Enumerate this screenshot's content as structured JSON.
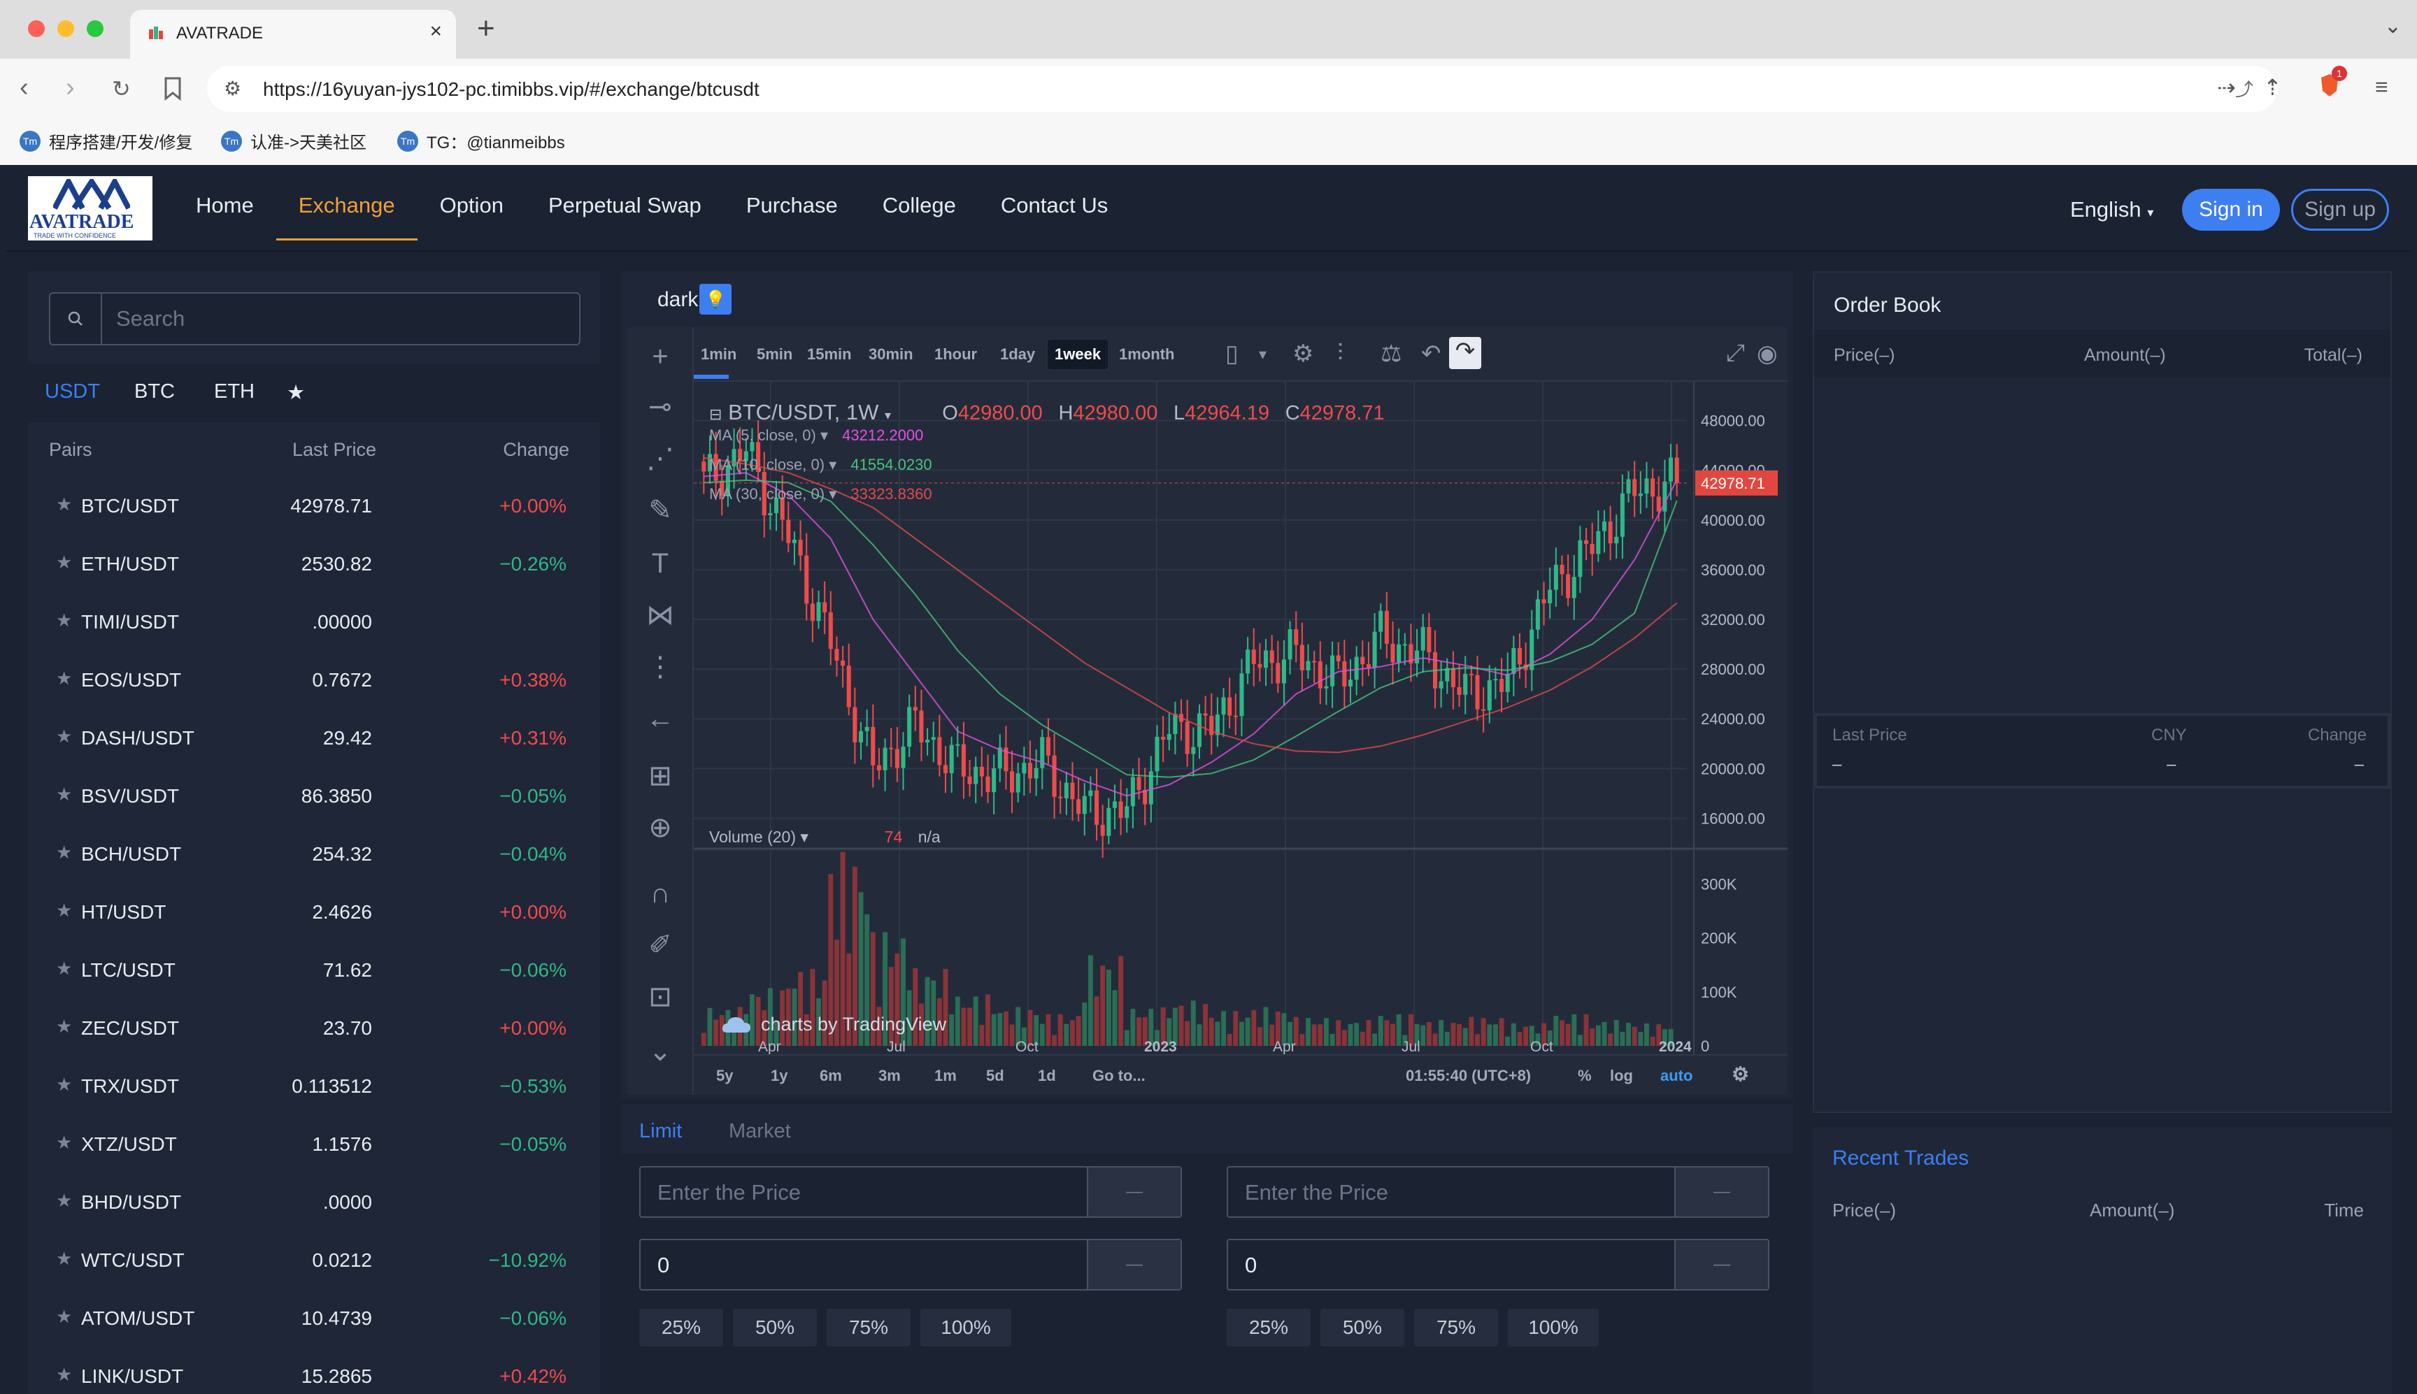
{
  "browser": {
    "tab_title": "AVATRADE",
    "url": "https://16yuyan-jys102-pc.timibbs.vip/#/exchange/btcusdt",
    "bookmarks": [
      "程序搭建/开发/修复",
      "认准->天美社区",
      "TG：@tianmeibbs"
    ],
    "extension_badge": "1"
  },
  "header": {
    "logo_text": "AVATRADE",
    "logo_sub": "TRADE WITH CONFIDENCE",
    "nav": [
      "Home",
      "Exchange",
      "Option",
      "Perpetual Swap",
      "Purchase",
      "College",
      "Contact Us"
    ],
    "active_nav": "Exchange",
    "language": "English",
    "signin": "Sign in",
    "signup": "Sign up"
  },
  "market": {
    "search_placeholder": "Search",
    "tabs": [
      "USDT",
      "BTC",
      "ETH",
      "★"
    ],
    "col_pairs": "Pairs",
    "col_price": "Last Price",
    "col_change": "Change",
    "pairs": [
      {
        "name": "BTC/USDT",
        "price": "42978.71",
        "change": "+0.00%",
        "dir": "up"
      },
      {
        "name": "ETH/USDT",
        "price": "2530.82",
        "change": "−0.26%",
        "dir": "down"
      },
      {
        "name": "TIMI/USDT",
        "price": ".00000",
        "change": "",
        "dir": "none"
      },
      {
        "name": "EOS/USDT",
        "price": "0.7672",
        "change": "+0.38%",
        "dir": "up"
      },
      {
        "name": "DASH/USDT",
        "price": "29.42",
        "change": "+0.31%",
        "dir": "up"
      },
      {
        "name": "BSV/USDT",
        "price": "86.3850",
        "change": "−0.05%",
        "dir": "down"
      },
      {
        "name": "BCH/USDT",
        "price": "254.32",
        "change": "−0.04%",
        "dir": "down"
      },
      {
        "name": "HT/USDT",
        "price": "2.4626",
        "change": "+0.00%",
        "dir": "up"
      },
      {
        "name": "LTC/USDT",
        "price": "71.62",
        "change": "−0.06%",
        "dir": "down"
      },
      {
        "name": "ZEC/USDT",
        "price": "23.70",
        "change": "+0.00%",
        "dir": "up"
      },
      {
        "name": "TRX/USDT",
        "price": "0.113512",
        "change": "−0.53%",
        "dir": "down"
      },
      {
        "name": "XTZ/USDT",
        "price": "1.1576",
        "change": "−0.05%",
        "dir": "down"
      },
      {
        "name": "BHD/USDT",
        "price": ".0000",
        "change": "",
        "dir": "none"
      },
      {
        "name": "WTC/USDT",
        "price": "0.0212",
        "change": "−10.92%",
        "dir": "down"
      },
      {
        "name": "ATOM/USDT",
        "price": "10.4739",
        "change": "−0.06%",
        "dir": "down"
      },
      {
        "name": "LINK/USDT",
        "price": "15.2865",
        "change": "+0.42%",
        "dir": "up"
      }
    ]
  },
  "chart": {
    "theme_label": "dark",
    "timeframes": [
      "1min",
      "5min",
      "15min",
      "30min",
      "1hour",
      "1day",
      "1week",
      "1month"
    ],
    "active_timeframe": "1week",
    "symbol": "BTC/USDT, 1W",
    "o_label": "O",
    "o": "42980.00",
    "h_label": "H",
    "h": "42980.00",
    "l_label": "L",
    "l": "42964.19",
    "c_label": "C",
    "c": "42978.71",
    "ma5": {
      "label": "MA (5, close, 0)",
      "value": "43212.2000"
    },
    "ma10": {
      "label": "MA (10, close, 0)",
      "value": "41554.0230"
    },
    "ma30": {
      "label": "MA (30, close, 0)",
      "value": "33323.8360"
    },
    "volume_label": "Volume (20)",
    "volume_value": "74",
    "volume_na": "n/a",
    "watermark": "charts by TradingView",
    "ranges": [
      "5y",
      "1y",
      "6m",
      "3m",
      "1m",
      "5d",
      "1d",
      "Go to..."
    ],
    "time": "01:55:40 (UTC+8)",
    "pct": "%",
    "log": "log",
    "auto": "auto",
    "price_ticks": [
      "48000.00",
      "44000.00",
      "40000.00",
      "36000.00",
      "32000.00",
      "28000.00",
      "24000.00",
      "20000.00",
      "16000.00"
    ],
    "volume_ticks": [
      "300K",
      "200K",
      "100K",
      "0"
    ],
    "x_labels": [
      "Apr",
      "Jul",
      "Oct",
      "2023",
      "Apr",
      "Jul",
      "Oct",
      "2024"
    ],
    "last_price_tag": "42978.71"
  },
  "chart_data": {
    "type": "candlestick",
    "title": "BTC/USDT, 1W",
    "ylabel": "",
    "ylim": [
      14000,
      50000
    ],
    "volume_ylim": [
      0,
      350000
    ],
    "x": [
      "2022-02",
      "2022-03",
      "2022-04",
      "2022-05",
      "2022-06",
      "2022-07",
      "2022-08",
      "2022-09",
      "2022-10",
      "2022-11",
      "2022-12",
      "2023-01",
      "2023-02",
      "2023-03",
      "2023-04",
      "2023-05",
      "2023-06",
      "2023-07",
      "2023-08",
      "2023-09",
      "2023-10",
      "2023-11",
      "2023-12",
      "2024-01"
    ],
    "close": [
      43000,
      45500,
      38600,
      30000,
      20000,
      23500,
      20000,
      19400,
      20500,
      16500,
      16600,
      23100,
      23200,
      28500,
      29200,
      27000,
      30500,
      29200,
      26000,
      26900,
      34500,
      37800,
      42300,
      42978.71
    ],
    "series": [
      {
        "name": "MA (5, close, 0)",
        "values": [
          43500,
          43800,
          42000,
          38500,
          32000,
          27500,
          23000,
          21500,
          20500,
          19000,
          17800,
          18700,
          20500,
          22800,
          26000,
          27800,
          28200,
          28900,
          28300,
          27500,
          29200,
          32000,
          36800,
          43212.2
        ]
      },
      {
        "name": "MA (10, close, 0)",
        "values": [
          43000,
          43200,
          43000,
          41500,
          38000,
          34000,
          29500,
          26000,
          23500,
          21500,
          19500,
          19300,
          19600,
          20700,
          22600,
          24600,
          26500,
          27800,
          28100,
          27900,
          28600,
          30000,
          32500,
          41554.023
        ]
      },
      {
        "name": "MA (30, close, 0)",
        "values": [
          45000,
          44500,
          43800,
          42500,
          41000,
          38500,
          36000,
          33500,
          31000,
          28500,
          26500,
          24500,
          23000,
          22000,
          21400,
          21300,
          21800,
          22700,
          23800,
          24900,
          26300,
          28200,
          30500,
          33323.836
        ]
      }
    ],
    "volume": [
      60000,
      90000,
      120000,
      300000,
      180000,
      120000,
      80000,
      60000,
      50000,
      140000,
      60000,
      70000,
      55000,
      60000,
      45000,
      40000,
      50000,
      40000,
      45000,
      35000,
      50000,
      40000,
      35000,
      74
    ]
  },
  "trade": {
    "tabs": [
      "Limit",
      "Market"
    ],
    "active_tab": "Limit",
    "price_placeholder": "Enter the Price",
    "amount_value": "0",
    "unit": "—",
    "percents": [
      "25%",
      "50%",
      "75%",
      "100%"
    ]
  },
  "orderbook": {
    "title": "Order Book",
    "col_price": "Price(–)",
    "col_amount": "Amount(–)",
    "col_total": "Total(–)",
    "last_price_label": "Last Price",
    "cny_label": "CNY",
    "change_label": "Change",
    "last_price": "–",
    "cny": "–",
    "change": "–"
  },
  "recent_trades": {
    "title": "Recent Trades",
    "col_price": "Price(–)",
    "col_amount": "Amount(–)",
    "col_time": "Time"
  },
  "colors": {
    "up": "#ef4b4b",
    "down": "#2eb888",
    "accent": "#3d7ff0",
    "nav_active": "#f0a135"
  }
}
